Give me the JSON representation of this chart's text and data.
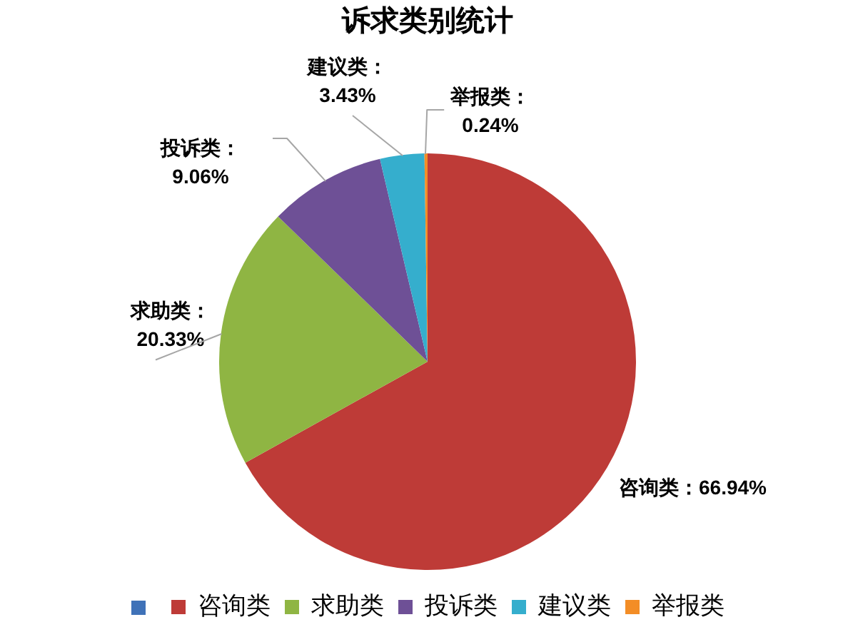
{
  "chart_data": {
    "type": "pie",
    "title": "诉求类别统计",
    "categories": [
      null,
      "咨询类",
      "求助类",
      "投诉类",
      "建议类",
      "举报类"
    ],
    "values": [
      0,
      66.94,
      20.33,
      9.06,
      3.43,
      0.24
    ],
    "colors": [
      "#3f72b8",
      "#be3b37",
      "#8fb543",
      "#6e5096",
      "#35aecd",
      "#f38d26"
    ],
    "value_labels": [
      null,
      "咨询类：66.94%",
      "求助类：20.33%",
      "投诉类：9.06%",
      "建议类：3.43%",
      "举报类：0.24%"
    ],
    "legend": "bottom"
  }
}
